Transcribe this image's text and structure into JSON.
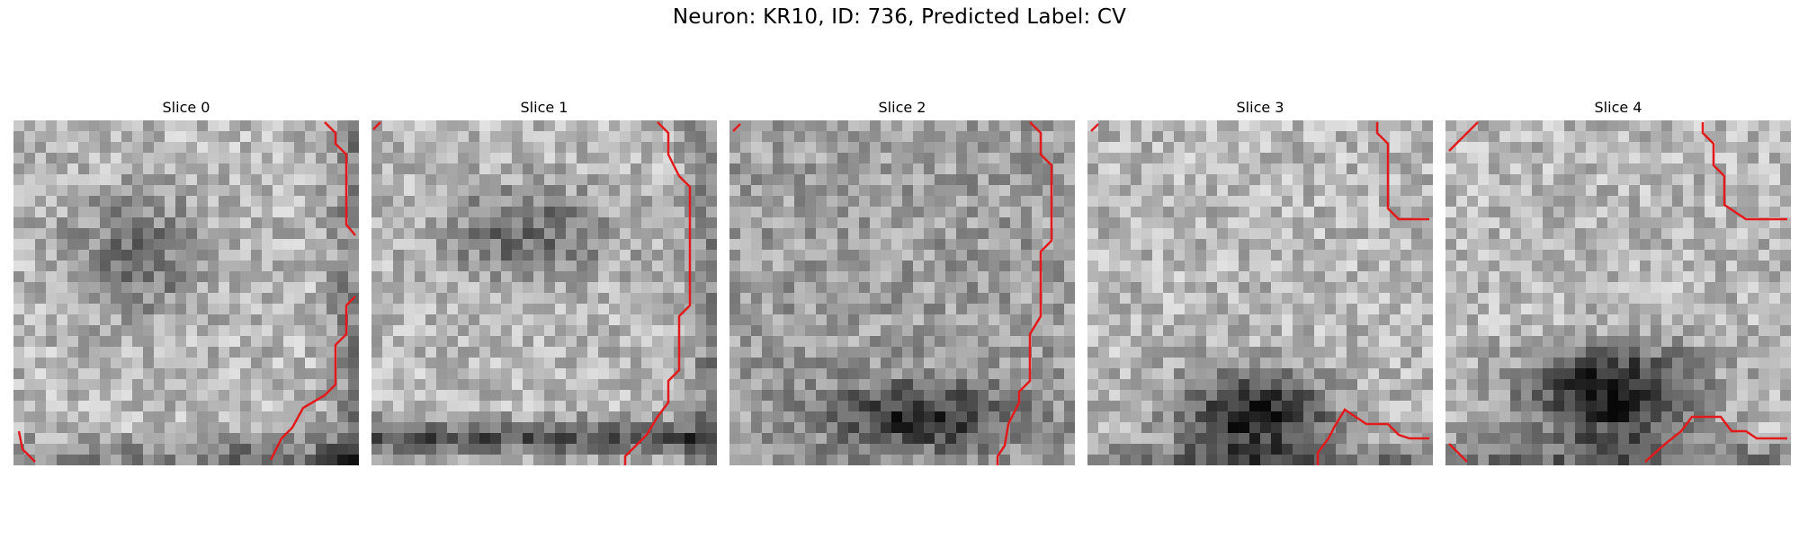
{
  "figure": {
    "title": "Neuron: KR10, ID: 736, Predicted Label: CV"
  },
  "slices": [
    {
      "title": "Slice 0",
      "icon": "grayscale-microscopy-slice",
      "contour_color": "#e31a1c"
    },
    {
      "title": "Slice 1",
      "icon": "grayscale-microscopy-slice",
      "contour_color": "#e31a1c"
    },
    {
      "title": "Slice 2",
      "icon": "grayscale-microscopy-slice",
      "contour_color": "#e31a1c"
    },
    {
      "title": "Slice 3",
      "icon": "grayscale-microscopy-slice",
      "contour_color": "#e31a1c"
    },
    {
      "title": "Slice 4",
      "icon": "grayscale-microscopy-slice",
      "contour_color": "#e31a1c"
    }
  ]
}
